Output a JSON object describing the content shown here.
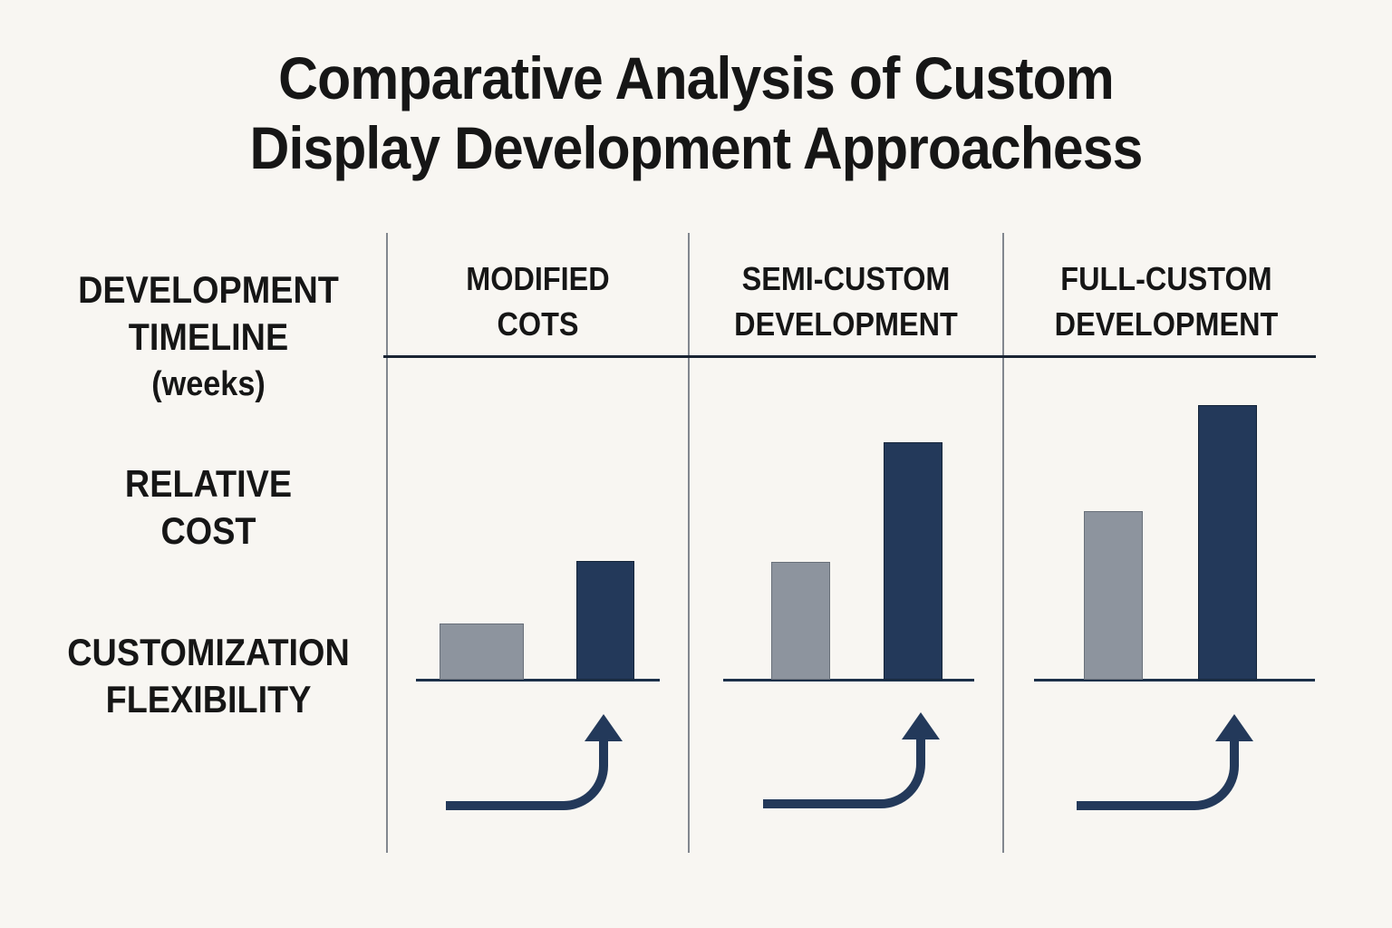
{
  "title": {
    "line1": "Comparative Analysis of Custom",
    "line2": "Display Development Approachess"
  },
  "row_labels": [
    {
      "lines": [
        "DEVELOPMENT",
        "TIMELINE",
        "(weeks)"
      ]
    },
    {
      "lines": [
        "RELATIVE",
        "COST"
      ]
    },
    {
      "lines": [
        "CUSTOMIZATION",
        "FLEXIBILITY"
      ]
    }
  ],
  "columns": [
    {
      "header_line1": "MODIFIED",
      "header_line2": "COTS"
    },
    {
      "header_line1": "SEMI-CUSTOM",
      "header_line2": "DEVELOPMENT"
    },
    {
      "header_line1": "FULL-CUSTOM",
      "header_line2": "DEVELOPMENT"
    }
  ],
  "colors": {
    "background": "#f8f6f2",
    "text": "#161616",
    "navy": "#23395a",
    "gray_bar": "#8d949e",
    "divider_gray": "#82878f",
    "header_rule": "#1a2433"
  },
  "icons": [
    {
      "name": "up-curve-arrow-icon",
      "meaning": "value rises / increases",
      "count": 3
    }
  ],
  "chart_data": {
    "type": "bar",
    "title": "Comparative Analysis of Custom Display Development Approachess",
    "categories": [
      "Modified COTS",
      "Semi-Custom Development",
      "Full-Custom Development"
    ],
    "row_metrics": [
      "Development Timeline (weeks)",
      "Relative Cost",
      "Customization Flexibility"
    ],
    "series": [
      {
        "name": "gray bar (shorter metric, e.g. timeline)",
        "color": "#8d949e",
        "relative_values": [
          62,
          130,
          186
        ]
      },
      {
        "name": "navy bar (taller metric, e.g. relative cost)",
        "color": "#23395a",
        "relative_values": [
          131,
          262,
          303
        ]
      }
    ],
    "value_axis": "no numeric axis shown; bar heights are relative (pixel heights at 1536px scale, common baseline)",
    "annotations": "an identical navy right-angle arrow curving upward appears under each category, indicating customization flexibility increases toward full-custom",
    "layout": {
      "panels": 3,
      "grid": "three columns separated by gray vertical lines; dark rule under column headers",
      "legend": "none"
    }
  }
}
